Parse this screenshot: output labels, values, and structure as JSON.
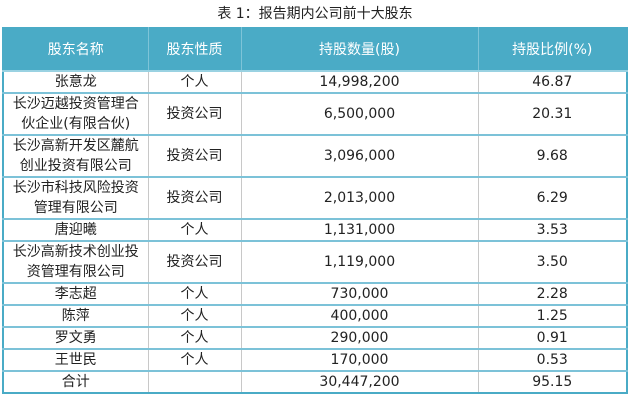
{
  "title": "表 1：报告期内公司前十大股东",
  "headers": [
    "股东名称",
    "股东性质",
    "持股数量(股)",
    "持股比例(%)"
  ],
  "rows": [
    [
      "张意龙",
      "个人",
      "14,998,200",
      "46.87"
    ],
    [
      "长沙迈越投资管理合伙企业(有限合伙)",
      "投资公司",
      "6,500,000",
      "20.31"
    ],
    [
      "长沙高新开发区麓航创业投资有限公司",
      "投资公司",
      "3,096,000",
      "9.68"
    ],
    [
      "长沙市科技风险投资管理有限公司",
      "投资公司",
      "2,013,000",
      "6.29"
    ],
    [
      "唐迎曦",
      "个人",
      "1,131,000",
      "3.53"
    ],
    [
      "长沙高新技术创业投资管理有限公司",
      "投资公司",
      "1,119,000",
      "3.50"
    ],
    [
      "李志超",
      "个人",
      "730,000",
      "2.28"
    ],
    [
      "陈萍",
      "个人",
      "400,000",
      "1.25"
    ],
    [
      "罗文勇",
      "个人",
      "290,000",
      "0.91"
    ],
    [
      "王世民",
      "个人",
      "170,000",
      "0.53"
    ],
    [
      "合计",
      "",
      "30,447,200",
      "95.15"
    ]
  ],
  "colors": {
    "header_bg": "#4aabc6",
    "border": "#7cc2d8"
  }
}
